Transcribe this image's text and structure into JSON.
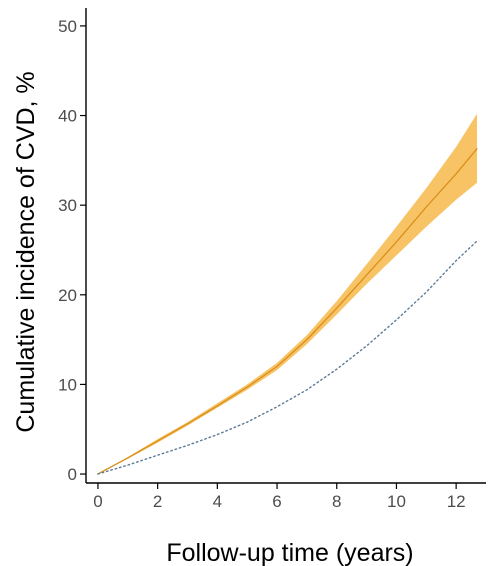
{
  "chart_data": {
    "type": "line",
    "title": "",
    "xlabel": "Follow-up time (years)",
    "ylabel": "Cumulative incidence of CVD, %",
    "xlim": [
      -0.4,
      13.0
    ],
    "ylim": [
      -1.0,
      52.0
    ],
    "x_ticks": [
      0,
      2,
      4,
      6,
      8,
      10,
      12
    ],
    "y_ticks": [
      0,
      10,
      20,
      30,
      40,
      50
    ],
    "grid": false,
    "legend": "none",
    "colors": {
      "ribbon": "#f7b84a",
      "line": "#d98f1c",
      "dotted": "#5b7a96",
      "axis": "#000000"
    },
    "series": [
      {
        "style": "solid-with-ribbon",
        "x": [
          0,
          1,
          2,
          3,
          4,
          5,
          6,
          7,
          8,
          9,
          10,
          11,
          12,
          12.7
        ],
        "values": [
          0,
          1.8,
          3.7,
          5.6,
          7.6,
          9.7,
          12.0,
          15.0,
          18.5,
          22.2,
          25.9,
          29.8,
          33.5,
          36.3
        ],
        "lower": [
          0,
          1.7,
          3.5,
          5.4,
          7.4,
          9.4,
          11.6,
          14.5,
          17.8,
          21.2,
          24.4,
          27.6,
          30.6,
          32.5
        ],
        "upper": [
          0,
          1.9,
          3.9,
          5.8,
          7.9,
          10.0,
          12.4,
          15.5,
          19.3,
          23.4,
          27.6,
          31.9,
          36.5,
          40.2
        ]
      },
      {
        "style": "dotted",
        "x": [
          0,
          1,
          2,
          3,
          4,
          5,
          6,
          7,
          8,
          9,
          10,
          11,
          12,
          12.7
        ],
        "values": [
          0,
          1.0,
          2.1,
          3.2,
          4.4,
          5.8,
          7.5,
          9.4,
          11.7,
          14.3,
          17.2,
          20.3,
          23.8,
          26.0
        ]
      }
    ]
  }
}
